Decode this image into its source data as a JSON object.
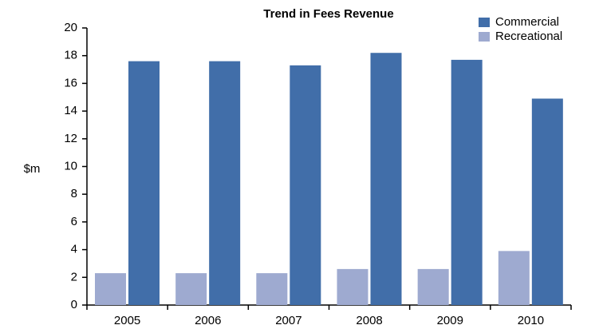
{
  "chart_data": {
    "type": "bar",
    "title": "Trend in Fees Revenue",
    "y_label": "$m",
    "categories": [
      "2005",
      "2006",
      "2007",
      "2008",
      "2009",
      "2010"
    ],
    "series": [
      {
        "name": "Recreational",
        "color": "#9eaad0",
        "values": [
          2.3,
          2.3,
          2.3,
          2.6,
          2.6,
          3.9
        ]
      },
      {
        "name": "Commercial",
        "color": "#416ea9",
        "values": [
          17.6,
          17.6,
          17.3,
          18.2,
          17.7,
          14.9
        ]
      }
    ],
    "legend_order": [
      1,
      0
    ],
    "ylim": [
      0,
      20
    ],
    "yticks": [
      0,
      2,
      4,
      6,
      8,
      10,
      12,
      14,
      16,
      18,
      20
    ],
    "grid": false,
    "legend": "top-right"
  }
}
